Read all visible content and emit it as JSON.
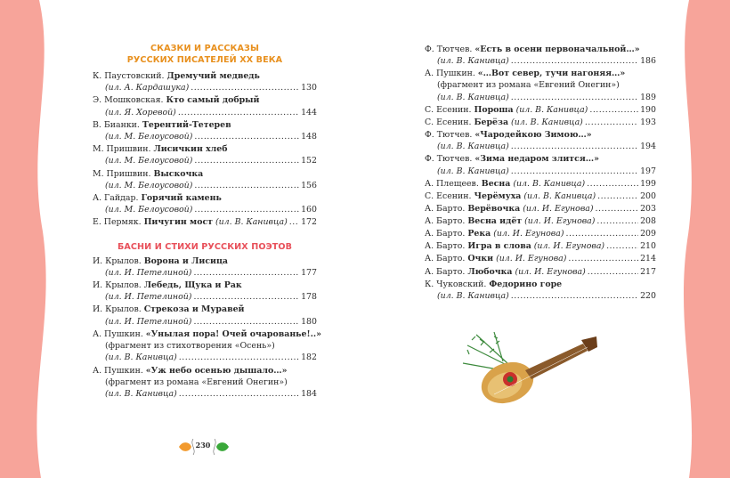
{
  "colors": {
    "edge": "#f7a49a",
    "heading_orange": "#e8901e",
    "heading_red": "#e8505a"
  },
  "left": {
    "section1_title": [
      "СКАЗКИ И РАССКАЗЫ",
      "РУССКИХ ПИСАТЕЛЕЙ XX ВЕКА"
    ],
    "section1_entries": [
      {
        "author": "К. Паустовский.",
        "title": "Дремучий медведь",
        "ill": "(ил. А. Кардашука)",
        "page": "130",
        "inline": false
      },
      {
        "author": "Э. Мошковская.",
        "title": "Кто самый добрый",
        "ill": "(ил. Я. Хоревой)",
        "page": "144",
        "inline": false
      },
      {
        "author": "В. Бианки.",
        "title": "Терентий-Тетерев",
        "ill": "(ил. М. Белоусовой)",
        "page": "148",
        "inline": false
      },
      {
        "author": "М. Пришвин.",
        "title": "Лисичкин хлеб",
        "ill": "(ил. М. Белоусовой)",
        "page": "152",
        "inline": false
      },
      {
        "author": "М. Пришвин.",
        "title": "Выскочка",
        "ill": "(ил. М. Белоусовой)",
        "page": "156",
        "inline": false
      },
      {
        "author": "А. Гайдар.",
        "title": "Горячий камень",
        "ill": "(ил. М. Белоусовой)",
        "page": "160",
        "inline": false
      },
      {
        "author": "Е. Пермяк.",
        "title": "Пичугин мост",
        "ill": "(ил. В. Канивца)",
        "page": "172",
        "inline": true
      }
    ],
    "section2_title": "БАСНИ И СТИХИ РУССКИХ ПОЭТОВ",
    "section2_entries": [
      {
        "author": "И. Крылов.",
        "title": "Ворона и Лисица",
        "ill": "(ил. И. Петелиной)",
        "page": "177",
        "inline": false
      },
      {
        "author": "И. Крылов.",
        "title": "Лебедь, Щука и Рак",
        "ill": "(ил. И. Петелиной)",
        "page": "178",
        "inline": false
      },
      {
        "author": "И. Крылов.",
        "title": "Стрекоза и Муравей",
        "ill": "(ил. И. Петелиной)",
        "page": "180",
        "inline": false
      },
      {
        "author": "А. Пушкин.",
        "title": "«Унылая пора! Очей очарованье!..»",
        "note": "(фрагмент из стихотворения «Осень»)",
        "ill": "(ил. В. Канивца)",
        "page": "182",
        "inline": false
      },
      {
        "author": "А. Пушкин.",
        "title": "«Уж небо осенью дышало…»",
        "note": "(фрагмент из романа «Евгений Онегин»)",
        "ill": "(ил. В. Канивца)",
        "page": "184",
        "inline": false
      }
    ],
    "page_number": "230"
  },
  "right": {
    "entries": [
      {
        "author": "Ф. Тютчев.",
        "title": "«Есть в осени первоначальной…»",
        "ill": "(ил. В. Канивца)",
        "page": "186",
        "inline": false
      },
      {
        "author": "А. Пушкин.",
        "title": "«…Вот север, тучи нагоняя…»",
        "note": "(фрагмент из романа «Евгений Онегин»)",
        "ill": "(ил. В. Канивца)",
        "page": "189",
        "inline": false
      },
      {
        "author": "С. Есенин.",
        "title": "Пороша",
        "ill": "(ил. В. Канивца)",
        "page": "190",
        "inline": true
      },
      {
        "author": "С. Есенин.",
        "title": "Берёза",
        "ill": "(ил. В. Канивца)",
        "page": "193",
        "inline": true
      },
      {
        "author": "Ф. Тютчев.",
        "title": "«Чародейкою Зимою…»",
        "ill": "(ил. В. Канивца)",
        "page": "194",
        "inline": false
      },
      {
        "author": "Ф. Тютчев.",
        "title": "«Зима недаром злится…»",
        "ill": "(ил. В. Канивца)",
        "page": "197",
        "inline": false
      },
      {
        "author": "А. Плещеев.",
        "title": "Весна",
        "ill": "(ил. В. Канивца)",
        "page": "199",
        "inline": true
      },
      {
        "author": "С. Есенин.",
        "title": "Черёмуха",
        "ill": "(ил. В. Канивца)",
        "page": "200",
        "inline": true
      },
      {
        "author": "А. Барто.",
        "title": "Верёвочка",
        "ill": "(ил. И. Егунова)",
        "page": "203",
        "inline": true
      },
      {
        "author": "А. Барто.",
        "title": "Весна идёт",
        "ill": "(ил. И. Егунова)",
        "page": "208",
        "inline": true
      },
      {
        "author": "А. Барто.",
        "title": "Река",
        "ill": "(ил. И. Егунова)",
        "page": "209",
        "inline": true
      },
      {
        "author": "А. Барто.",
        "title": "Игра в слова",
        "ill": "(ил. И. Егунова)",
        "page": "210",
        "inline": true
      },
      {
        "author": "А. Барто.",
        "title": "Очки",
        "ill": "(ил. И. Егунова)",
        "page": "214",
        "inline": true
      },
      {
        "author": "А. Барто.",
        "title": "Любочка",
        "ill": "(ил. И. Егунова)",
        "page": "217",
        "inline": true
      },
      {
        "author": "К. Чуковский.",
        "title": "Федорино горе",
        "ill": "(ил. В. Канивца)",
        "page": "220",
        "inline": false
      }
    ]
  },
  "illustration": {
    "icon": "lute-with-fir-branch-icon"
  }
}
